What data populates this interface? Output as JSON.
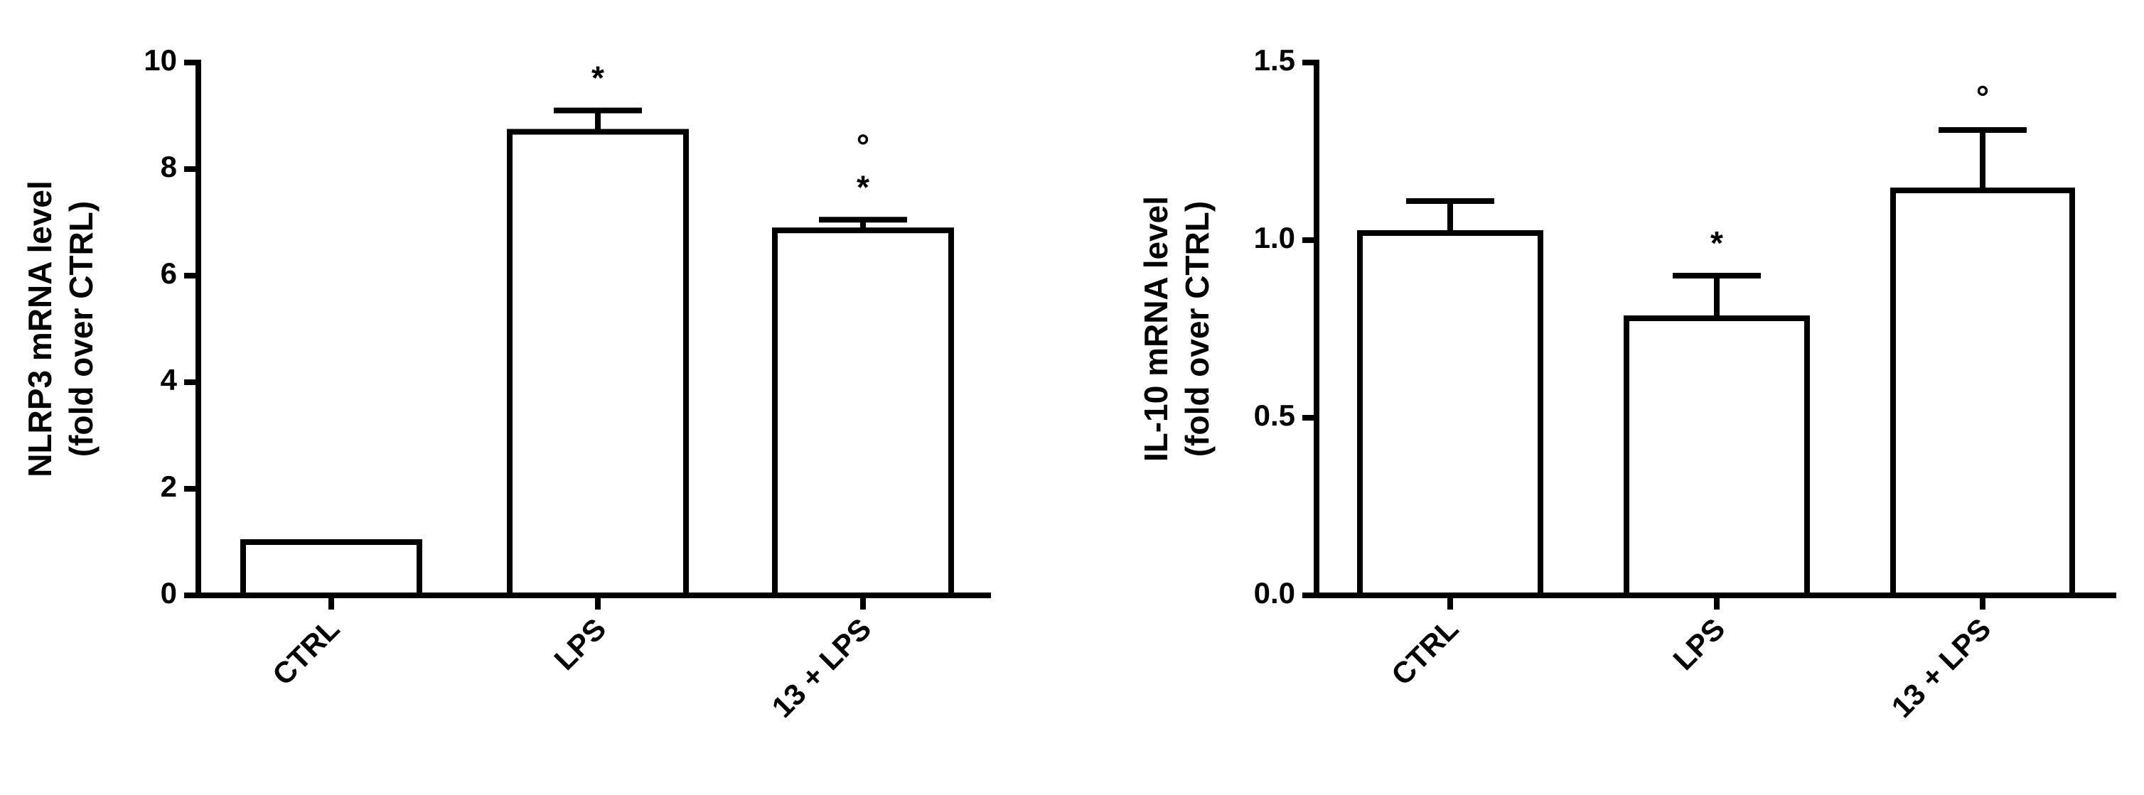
{
  "chart_data": [
    {
      "type": "bar",
      "ylabel": [
        "NLRP3 mRNA level",
        "(fold over CTRL)"
      ],
      "categories": [
        "CTRL",
        "LPS",
        "13 + LPS"
      ],
      "values": [
        1.0,
        8.7,
        6.85
      ],
      "errors": [
        0,
        0.4,
        0.2
      ],
      "annotations": [
        [],
        [
          "*"
        ],
        [
          "°",
          "*"
        ]
      ],
      "color": "#ffffff",
      "ylim": [
        0,
        10
      ],
      "yticks": [
        0,
        2,
        4,
        6,
        8,
        10
      ]
    },
    {
      "type": "bar",
      "ylabel": [
        "IL-10 mRNA level",
        "(fold over CTRL)"
      ],
      "categories": [
        "CTRL",
        "LPS",
        "13 + LPS"
      ],
      "values": [
        1.02,
        0.78,
        1.14
      ],
      "errors": [
        0.09,
        0.12,
        0.17
      ],
      "annotations": [
        [],
        [
          "*"
        ],
        [
          "°"
        ]
      ],
      "color": "#ffffff",
      "ylim": [
        0,
        1.5
      ],
      "yticks": [
        {
          "value": 0,
          "label": "0.0"
        },
        0.5,
        {
          "value": 1,
          "label": "1.0"
        },
        {
          "value": 1.5,
          "label": "1.5"
        }
      ]
    }
  ]
}
